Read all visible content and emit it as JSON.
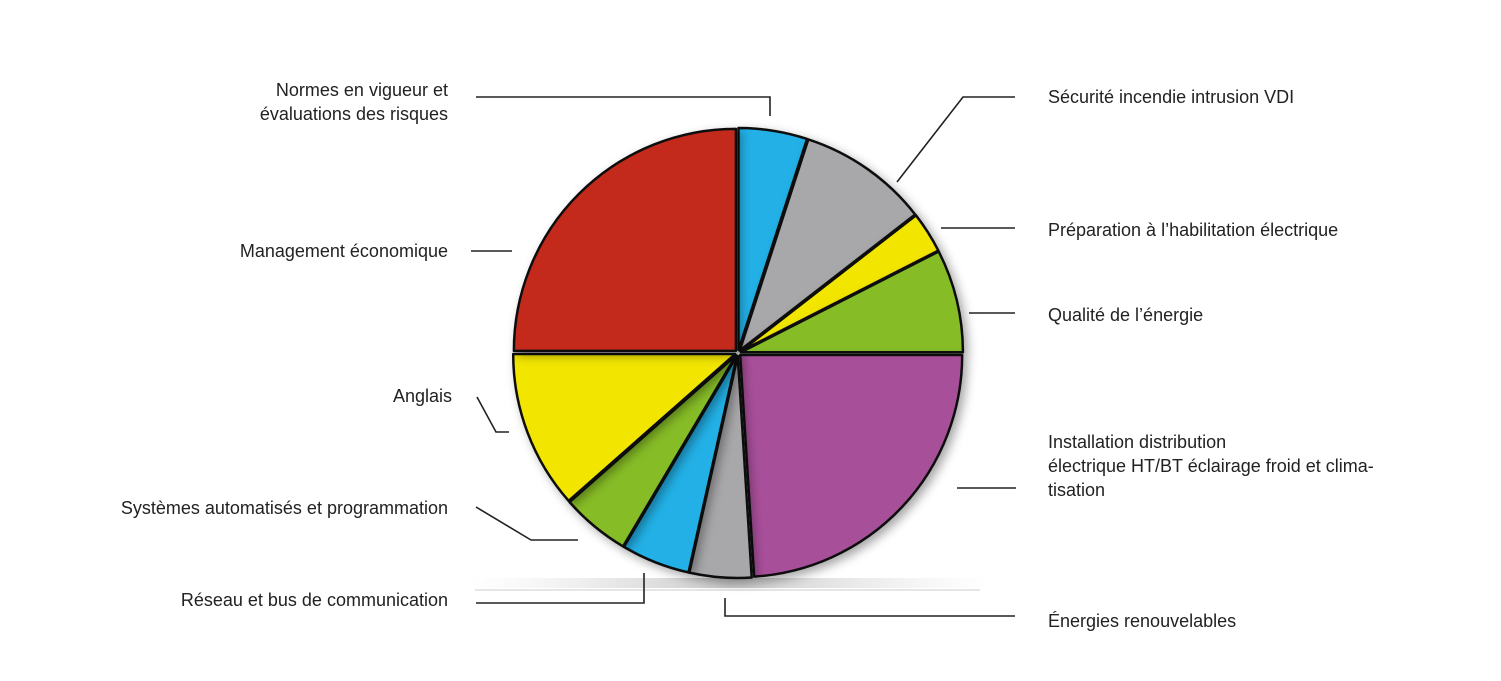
{
  "chart_data": {
    "type": "pie",
    "title": "",
    "start_angle_deg": 0,
    "direction": "clockwise",
    "slices": [
      {
        "label": [
          "Normes en vigueur et",
          "évaluations des risques"
        ],
        "value": 5,
        "color": "#22b0e6"
      },
      {
        "label": [
          "Sécurité incendie intrusion VDI"
        ],
        "value": 9.5,
        "color": "#a8a7aa"
      },
      {
        "label": [
          "Préparation à l’habilitation électrique"
        ],
        "value": 3,
        "color": "#f2e600"
      },
      {
        "label": [
          "Qualité de l’énergie"
        ],
        "value": 7.5,
        "color": "#86bc25"
      },
      {
        "label": [
          "Installation distribution",
          "électrique HT/BT éclairage froid et clima-",
          "tisation"
        ],
        "value": 24,
        "color": "#a8509a"
      },
      {
        "label": [
          "Énergies renouvelables"
        ],
        "value": 4.5,
        "color": "#a8a7aa"
      },
      {
        "label": [
          "Réseau et bus de communication"
        ],
        "value": 5,
        "color": "#22b0e6"
      },
      {
        "label": [
          "Systèmes automatisés et programmation"
        ],
        "value": 5,
        "color": "#86bc25"
      },
      {
        "label": [
          "Anglais"
        ],
        "value": 11.5,
        "color": "#f2e600"
      },
      {
        "label": [
          "Management économique"
        ],
        "value": 25,
        "color": "#c42a1a"
      }
    ]
  }
}
